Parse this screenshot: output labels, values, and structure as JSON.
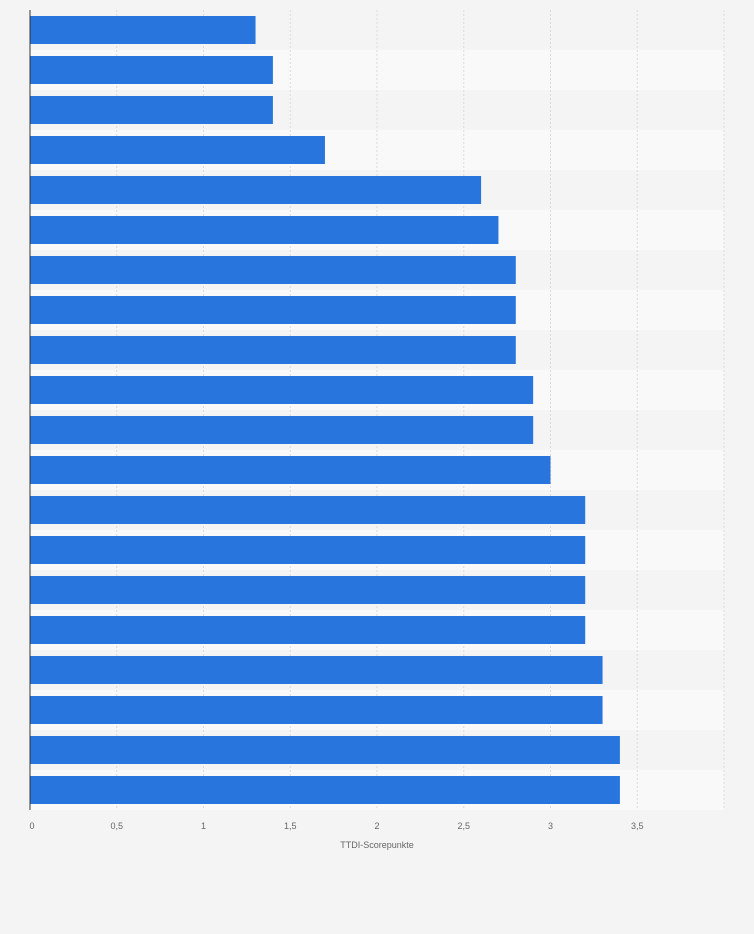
{
  "chart_data": {
    "type": "bar",
    "orientation": "horizontal",
    "title": "",
    "xlabel": "TTDI-Scorepunkte",
    "ylabel": "",
    "xlim": [
      0,
      4
    ],
    "x_ticks": [
      0,
      0.5,
      1,
      1.5,
      2,
      2.5,
      3,
      3.5
    ],
    "x_tick_labels": [
      "0",
      "0,5",
      "1",
      "1,5",
      "2",
      "2,5",
      "3",
      "3,5"
    ],
    "grid": true,
    "legend": "none",
    "bar_color": "#2775dd",
    "values": [
      1.3,
      1.4,
      1.4,
      1.7,
      2.6,
      2.7,
      2.8,
      2.8,
      2.8,
      2.9,
      2.9,
      3.0,
      3.2,
      3.2,
      3.2,
      3.2,
      3.3,
      3.3,
      3.4,
      3.4
    ]
  }
}
